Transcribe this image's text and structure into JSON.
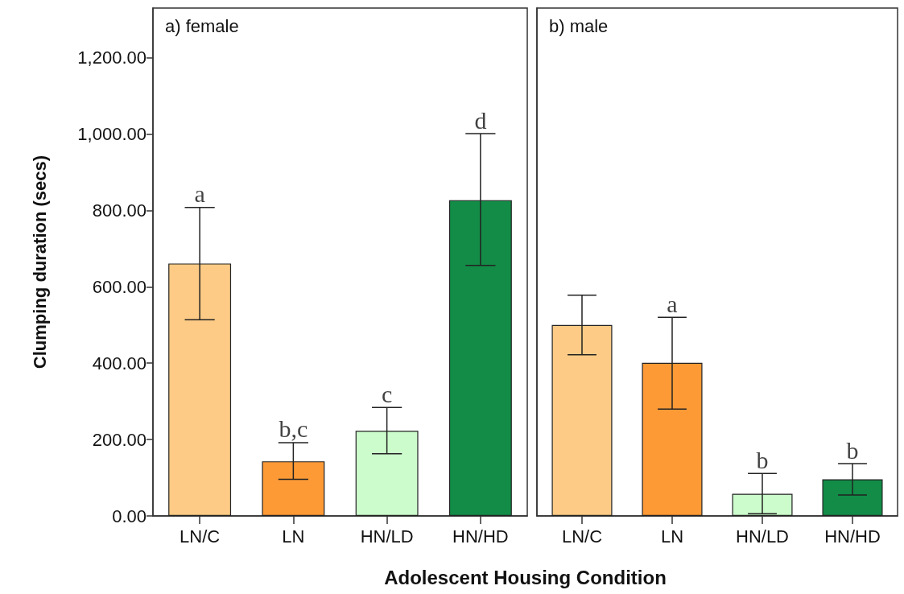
{
  "chart_data": [
    {
      "type": "bar",
      "title": "a) female",
      "ylabel": "Clumping duration (secs)",
      "xlabel": "Adolescent Housing Condition",
      "categories": [
        "LN/C",
        "LN",
        "HN/LD",
        "HN/HD"
      ],
      "values": [
        661,
        143,
        223,
        827
      ],
      "colors": [
        "#fdcb85",
        "#fd9a36",
        "#ccfccc",
        "#128c47"
      ],
      "errors": [
        [
          514,
          808
        ],
        [
          96,
          192
        ],
        [
          163,
          284
        ],
        [
          656,
          1001
        ]
      ],
      "ylim": [
        0,
        1330
      ],
      "yticks": [
        {
          "value": 0,
          "label": "0.00"
        },
        {
          "value": 200,
          "label": "200.00"
        },
        {
          "value": 400,
          "label": "400.00"
        },
        {
          "value": 600,
          "label": "600.00"
        },
        {
          "value": 800,
          "label": "800.00"
        },
        {
          "value": 1000,
          "label": "1,000.00"
        },
        {
          "value": 1200,
          "label": "1,200.00"
        }
      ],
      "grid": false,
      "annotations": [
        {
          "text": "a",
          "x": "LN/C",
          "y": 808
        },
        {
          "text": "b,c",
          "x": "LN",
          "y": 192
        },
        {
          "text": "c",
          "x": "HN/LD",
          "y": 284
        },
        {
          "text": "d",
          "x": "HN/HD",
          "y": 1001
        }
      ]
    },
    {
      "type": "bar",
      "title": "b) male",
      "categories": [
        "LN/C",
        "LN",
        "HN/LD",
        "HN/HD"
      ],
      "values": [
        500,
        401,
        58,
        96
      ],
      "colors": [
        "#fdcb85",
        "#fd9a36",
        "#ccfccc",
        "#128c47"
      ],
      "errors": [
        [
          422,
          578
        ],
        [
          280,
          520
        ],
        [
          6,
          111
        ],
        [
          55,
          137
        ]
      ],
      "ylim": [
        0,
        1330
      ],
      "tick_labels": "x",
      "grid": false,
      "annotations": [
        {
          "text": "a",
          "x": "LN",
          "y": 520
        },
        {
          "text": "b",
          "x": "HN/LD",
          "y": 111
        },
        {
          "text": "b",
          "x": "HN/HD",
          "y": 137
        }
      ]
    }
  ]
}
